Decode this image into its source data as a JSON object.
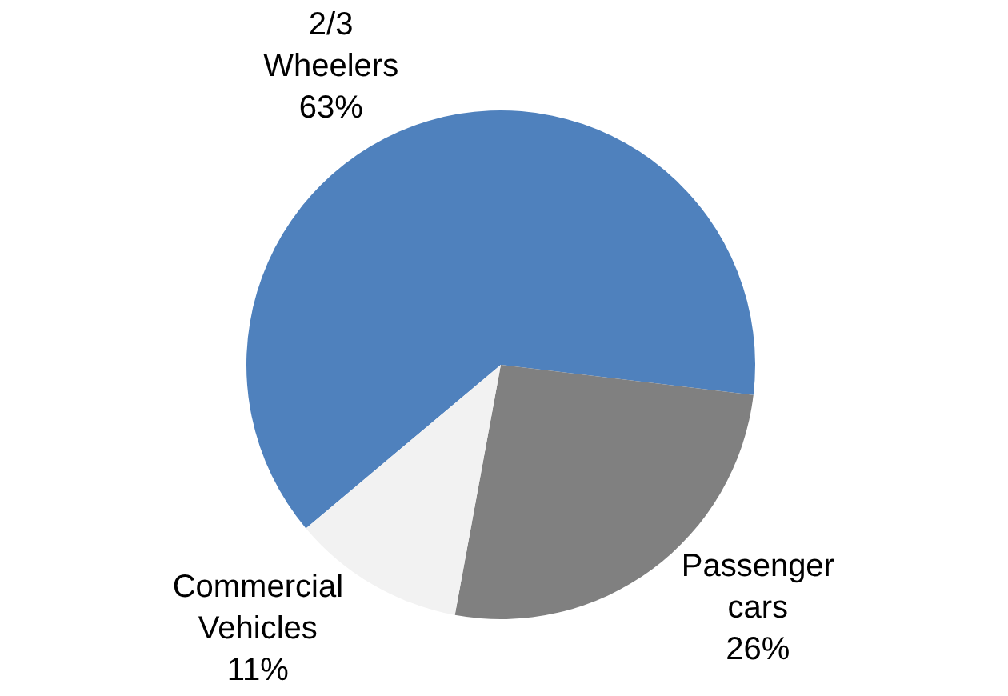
{
  "chart_data": {
    "type": "pie",
    "categories": [
      "2/3 Wheelers",
      "Passenger cars",
      "Commercial Vehicles"
    ],
    "values": [
      63,
      26,
      11
    ],
    "value_labels": [
      "63%",
      "26%",
      "11%"
    ],
    "colors": [
      "#4f81bd",
      "#808080",
      "#f2f2f2"
    ],
    "legend": false
  }
}
